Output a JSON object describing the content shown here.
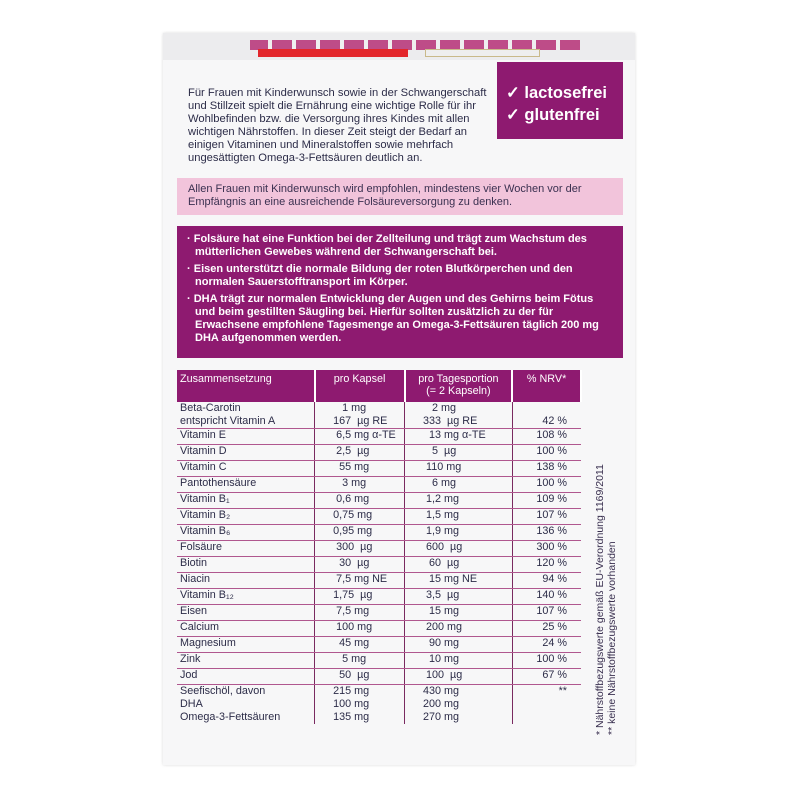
{
  "badge": {
    "line1": "lactosefrei",
    "line2": "glutenfrei",
    "check_icon": "check-icon"
  },
  "intro": "Für Frauen mit Kinderwunsch sowie in der Schwangerschaft und Stillzeit spielt die Ernährung eine wichtige Rolle für ihr Wohlbefinden bzw. die Versorgung ihres Kindes mit allen wichtigen Nährstoffen. In dieser Zeit steigt der Bedarf an einigen Vitaminen und Mineralstoffen sowie mehrfach ungesättigten Omega-3-Fettsäuren deutlich an.",
  "recommendation": "Allen Frauen mit Kinderwunsch wird empfohlen, mindestens vier Wochen vor der Empfängnis an eine ausreichende Folsäureversorgung zu denken.",
  "claims": [
    "Folsäure hat eine Funktion bei der Zellteilung und trägt zum Wachstum des mütterlichen Gewebes während der Schwangerschaft bei.",
    "Eisen unterstützt die normale Bildung der roten Blutkörperchen und den normalen Sauerstofftransport im Körper.",
    "DHA trägt zur normalen Entwicklung der Augen und des Gehirns beim Fötus und beim gestillten Säugling bei. Hierfür sollten zusätzlich zu der für Erwachsene empfohlene Tagesmenge an Omega-3-Fettsäuren täglich 200 mg DHA aufgenommen werden."
  ],
  "table": {
    "headers": [
      "Zusammensetzung",
      "pro Kapsel",
      "pro Tagesportion\n(= 2 Kapseln)",
      "% NRV*"
    ],
    "rows": [
      [
        "Beta-Carotin\nentspricht Vitamin A",
        "   1 mg\n167  µg RE",
        "   2 mg\n333  µg RE",
        "\n42 %"
      ],
      [
        "Vitamin E",
        " 6,5 mg α-TE",
        "  13 mg α-TE",
        "108 %"
      ],
      [
        "Vitamin D",
        " 2,5  µg",
        "   5  µg",
        "100 %"
      ],
      [
        "Vitamin C",
        "  55 mg",
        " 110 mg",
        "138 %"
      ],
      [
        "Pantothensäure",
        "   3 mg",
        "   6 mg",
        "100 %"
      ],
      [
        "Vitamin B₁",
        " 0,6 mg",
        " 1,2 mg",
        "109 %"
      ],
      [
        "Vitamin B₂",
        "0,75 mg",
        " 1,5 mg",
        "107 %"
      ],
      [
        "Vitamin B₆",
        "0,95 mg",
        " 1,9 mg",
        "136 %"
      ],
      [
        "Folsäure",
        " 300  µg",
        " 600  µg",
        "300 %"
      ],
      [
        "Biotin",
        "  30  µg",
        "  60  µg",
        "120 %"
      ],
      [
        "Niacin",
        " 7,5 mg NE",
        "  15 mg NE",
        "94 %"
      ],
      [
        "Vitamin B₁₂",
        "1,75  µg",
        " 3,5  µg",
        "140 %"
      ],
      [
        "Eisen",
        " 7,5 mg",
        "  15 mg",
        "107 %"
      ],
      [
        "Calcium",
        " 100 mg",
        " 200 mg",
        "25 %"
      ],
      [
        "Magnesium",
        "  45 mg",
        "  90 mg",
        "24 %"
      ],
      [
        "Zink",
        "   5 mg",
        "  10 mg",
        "100 %"
      ],
      [
        "Jod",
        "  50  µg",
        " 100  µg",
        "67 %"
      ],
      [
        "Seefischöl, davon\nDHA\nOmega-3-Fettsäuren",
        "215 mg\n100 mg\n135 mg",
        "430 mg\n200 mg\n270 mg",
        "**"
      ]
    ]
  },
  "footnotes": [
    "*  Nährstoffbezugswerte gemäß EU-Verordnung 1169/2011",
    "** keine Nährstoffbezugswerte vorhanden"
  ]
}
